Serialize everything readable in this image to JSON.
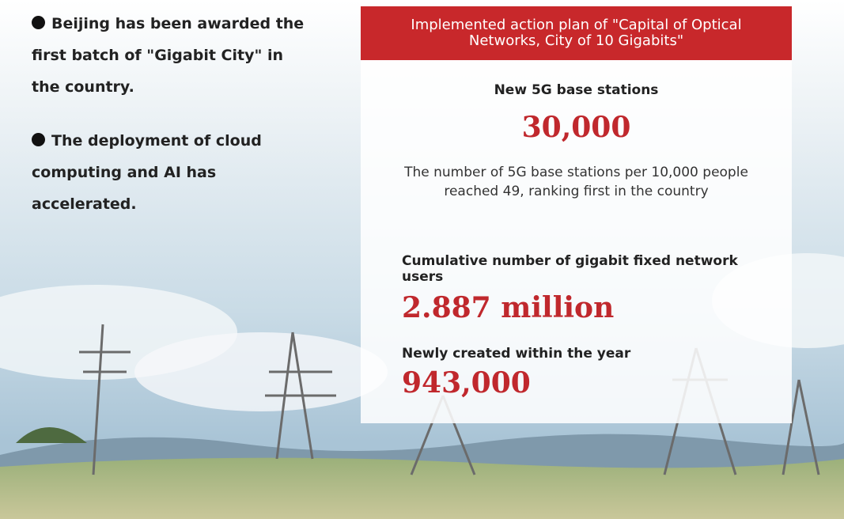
{
  "bullets": [
    "Beijing has been awarded the first batch of \"Gigabit City\" in the country.",
    "The deployment of cloud computing and AI has accelerated."
  ],
  "panel": {
    "title": "Implemented action plan of \"Capital of Optical Networks, City of 10 Gigabits\"",
    "stats": [
      {
        "label": "New 5G base stations",
        "value": "30,000",
        "note": "The number of 5G base stations per 10,000 people reached 49, ranking first in the country"
      },
      {
        "label": "Cumulative number of gigabit fixed network users",
        "value": "2.887 million"
      },
      {
        "label": "Newly created within the year",
        "value": "943,000"
      }
    ]
  }
}
